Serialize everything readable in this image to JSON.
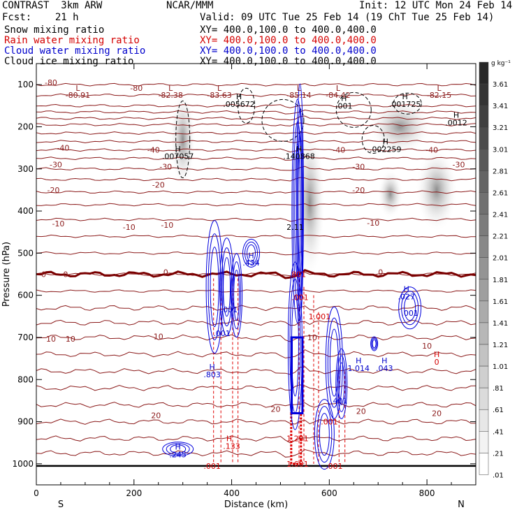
{
  "header": {
    "left_title": "CONTRAST  3km ARW",
    "center_title": "NCAR/MMM",
    "init": "Init: 12 UTC Mon 24 Feb 14",
    "fcst": "Fcst:    21 h",
    "valid": "Valid: 09 UTC Tue 25 Feb 14 (19 ChT Tue 25 Feb 14)",
    "fields": [
      {
        "label": "Snow mixing ratio",
        "xy": "XY= 400.0,100.0 to 400.0,400.0",
        "color": "#000000"
      },
      {
        "label": "Rain water mixing ratio",
        "xy": "XY= 400.0,100.0 to 400.0,400.0",
        "color": "#d40000"
      },
      {
        "label": "Cloud water mixing ratio",
        "xy": "XY= 400.0,100.0 to 400.0,400.0",
        "color": "#0000cc"
      },
      {
        "label": "Cloud ice mixing ratio",
        "xy": "XY= 400.0,100.0 to 400.0,400.0",
        "color": "#000000"
      }
    ]
  },
  "chart_data": {
    "type": "heatmap",
    "xlabel": "Distance (km)",
    "ylabel": "Pressure (hPa)",
    "xlim": [
      0,
      900
    ],
    "ylim": [
      1050,
      50
    ],
    "x_ticks": [
      0,
      200,
      400,
      600,
      800
    ],
    "y_ticks": [
      100,
      200,
      300,
      400,
      500,
      600,
      700,
      800,
      900,
      1000
    ],
    "edge_labels": {
      "left": "S",
      "right": "N"
    },
    "colorbar": {
      "unit": "g kg⁻¹",
      "ticks": [
        "3.61",
        "3.41",
        "3.21",
        "3.01",
        "2.81",
        "2.61",
        "2.41",
        "2.21",
        "2.01",
        "1.81",
        "1.61",
        "1.41",
        "1.21",
        "1.01",
        ".81",
        ".61",
        ".41",
        ".21",
        ".01"
      ]
    },
    "temperature_contours": [
      {
        "p": 100,
        "t": -80
      },
      {
        "p": 150,
        "t": -70
      },
      {
        "p": 180,
        "t": -60
      },
      {
        "p": 215,
        "t": -50
      },
      {
        "p": 255,
        "t": -40
      },
      {
        "p": 300,
        "t": -30
      },
      {
        "p": 355,
        "t": -20
      },
      {
        "p": 420,
        "t": -10
      },
      {
        "p": 550,
        "t": 0
      },
      {
        "p": 700,
        "t": 10
      },
      {
        "p": 880,
        "t": 20
      }
    ],
    "contour_labels": [
      {
        "text": "-80",
        "x": 30,
        "p": 95
      },
      {
        "text": "-80",
        "x": 205,
        "p": 108
      },
      {
        "text": "-30",
        "x": 40,
        "p": 290
      },
      {
        "text": "-20",
        "x": 35,
        "p": 350
      },
      {
        "text": "-20",
        "x": 250,
        "p": 338
      },
      {
        "text": "-10",
        "x": 45,
        "p": 430
      },
      {
        "text": "-10",
        "x": 190,
        "p": 438
      },
      {
        "text": "-10",
        "x": 268,
        "p": 433
      },
      {
        "text": "-10",
        "x": 690,
        "p": 428
      },
      {
        "text": "0",
        "x": 15,
        "p": 550
      },
      {
        "text": "0",
        "x": 60,
        "p": 550
      },
      {
        "text": "0",
        "x": 265,
        "p": 545
      },
      {
        "text": "0",
        "x": 705,
        "p": 545
      },
      {
        "text": "10",
        "x": 30,
        "p": 703
      },
      {
        "text": "10",
        "x": 70,
        "p": 703
      },
      {
        "text": "10",
        "x": 250,
        "p": 698
      },
      {
        "text": "10",
        "x": 565,
        "p": 700
      },
      {
        "text": "10",
        "x": 800,
        "p": 720
      },
      {
        "text": "20",
        "x": 245,
        "p": 885
      },
      {
        "text": "20",
        "x": 490,
        "p": 870
      },
      {
        "text": "20",
        "x": 665,
        "p": 875
      },
      {
        "text": "20",
        "x": 820,
        "p": 880
      },
      {
        "text": "-40",
        "x": 55,
        "p": 250
      },
      {
        "text": "-40",
        "x": 240,
        "p": 255
      },
      {
        "text": "-40",
        "x": 620,
        "p": 255
      },
      {
        "text": "-40",
        "x": 810,
        "p": 255
      },
      {
        "text": "-30",
        "x": 265,
        "p": 295
      },
      {
        "text": "-30",
        "x": 660,
        "p": 295
      },
      {
        "text": "-30",
        "x": 865,
        "p": 290
      },
      {
        "text": "-20",
        "x": 660,
        "p": 350
      }
    ],
    "minima_labels": [
      {
        "text": "L",
        "x": 85,
        "p": 108
      },
      {
        "text": "-80.91",
        "x": 85,
        "p": 125
      },
      {
        "text": "L",
        "x": 275,
        "p": 108
      },
      {
        "text": "-82.38",
        "x": 275,
        "p": 125
      },
      {
        "text": "L",
        "x": 375,
        "p": 108
      },
      {
        "text": "-83.63",
        "x": 375,
        "p": 125
      },
      {
        "text": "L",
        "x": 538,
        "p": 108
      },
      {
        "text": "-85.14",
        "x": 538,
        "p": 125
      },
      {
        "text": "L",
        "x": 618,
        "p": 108
      },
      {
        "text": "-84.42",
        "x": 618,
        "p": 125
      },
      {
        "text": "L",
        "x": 825,
        "p": 108
      },
      {
        "text": "-82.15",
        "x": 825,
        "p": 125
      }
    ],
    "ice_maxima": [
      {
        "text": "H",
        "x": 415,
        "p": 128
      },
      {
        "text": ".005672",
        "x": 415,
        "p": 146
      },
      {
        "text": "H",
        "x": 630,
        "p": 132
      },
      {
        "text": ".001",
        "x": 630,
        "p": 150
      },
      {
        "text": "H",
        "x": 755,
        "p": 128
      },
      {
        "text": ".001725",
        "x": 755,
        "p": 146
      },
      {
        "text": "H",
        "x": 860,
        "p": 172
      },
      {
        "text": ".0012",
        "x": 860,
        "p": 190
      },
      {
        "text": "H",
        "x": 290,
        "p": 252
      },
      {
        "text": ".007057",
        "x": 290,
        "p": 270
      },
      {
        "text": "H",
        "x": 538,
        "p": 252
      },
      {
        "text": ".140868",
        "x": 538,
        "p": 270
      },
      {
        "text": "H",
        "x": 715,
        "p": 235
      },
      {
        "text": ".002259",
        "x": 715,
        "p": 253
      }
    ],
    "snow_maxima": [
      {
        "text": "2.11",
        "x": 530,
        "p": 438
      }
    ],
    "cloud_water_maxima": [
      {
        "text": "H",
        "x": 440,
        "p": 505
      },
      {
        "text": ".434",
        "x": 440,
        "p": 523
      },
      {
        "text": ".001",
        "x": 395,
        "p": 634
      },
      {
        "text": ".001",
        "x": 380,
        "p": 690
      },
      {
        "text": "H",
        "x": 360,
        "p": 770
      },
      {
        "text": ".803",
        "x": 360,
        "p": 788
      },
      {
        "text": "H",
        "x": 758,
        "p": 585
      },
      {
        "text": ".027",
        "x": 758,
        "p": 603
      },
      {
        "text": ".001",
        "x": 765,
        "p": 642
      },
      {
        "text": "H",
        "x": 660,
        "p": 755
      },
      {
        "text": "1.014",
        "x": 660,
        "p": 773
      },
      {
        "text": "H",
        "x": 713,
        "p": 755
      },
      {
        "text": ".043",
        "x": 713,
        "p": 773
      },
      {
        "text": ".401",
        "x": 620,
        "p": 850
      },
      {
        "text": "H",
        "x": 290,
        "p": 960
      },
      {
        "text": ".245",
        "x": 290,
        "p": 978
      }
    ],
    "rain_maxima": [
      {
        "text": ".801",
        "x": 535,
        "p": 550
      },
      {
        "text": ".001",
        "x": 540,
        "p": 605
      },
      {
        "text": "1.001",
        "x": 580,
        "p": 650
      },
      {
        "text": "H",
        "x": 820,
        "p": 740
      },
      {
        "text": "0",
        "x": 820,
        "p": 758
      },
      {
        "text": ".001",
        "x": 600,
        "p": 900
      },
      {
        "text": "H",
        "x": 395,
        "p": 940
      },
      {
        "text": ".133",
        "x": 400,
        "p": 958
      },
      {
        "text": "1.201",
        "x": 535,
        "p": 940
      },
      {
        "text": "1.601",
        "x": 535,
        "p": 1000
      },
      {
        "text": ".001",
        "x": 360,
        "p": 1005
      },
      {
        "text": ".001",
        "x": 610,
        "p": 1005
      }
    ]
  }
}
